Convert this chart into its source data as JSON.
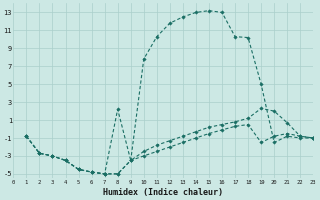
{
  "bg_color": "#cce8e4",
  "grid_color": "#aacfcb",
  "line_color": "#1a6e64",
  "series1_x": [
    1,
    2,
    3,
    4,
    5,
    6,
    7,
    8,
    9,
    10,
    11,
    12,
    13,
    14,
    15,
    16,
    17,
    18,
    19,
    20,
    21,
    22,
    23
  ],
  "series1_y": [
    -0.8,
    -2.7,
    -3.0,
    -3.5,
    -4.5,
    -4.8,
    -5.0,
    -5.0,
    -3.5,
    7.8,
    10.3,
    11.8,
    12.5,
    13.0,
    13.2,
    13.0,
    10.3,
    10.2,
    5.0,
    -1.5,
    -0.8,
    -1.0,
    -1.0
  ],
  "series2_x": [
    1,
    2,
    3,
    4,
    5,
    6,
    7,
    8,
    9,
    10,
    11,
    12,
    13,
    14,
    15,
    16,
    17,
    18,
    19,
    20,
    21,
    22,
    23
  ],
  "series2_y": [
    -0.8,
    -2.7,
    -3.0,
    -3.5,
    -4.5,
    -4.8,
    -5.0,
    2.2,
    -3.5,
    -2.5,
    -1.8,
    -1.3,
    -0.8,
    -0.3,
    0.2,
    0.5,
    0.8,
    1.2,
    2.3,
    2.0,
    0.7,
    -0.8,
    -1.0
  ],
  "series3_x": [
    1,
    2,
    3,
    4,
    5,
    6,
    7,
    8,
    9,
    10,
    11,
    12,
    13,
    14,
    15,
    16,
    17,
    18,
    19,
    20,
    21,
    22,
    23
  ],
  "series3_y": [
    -0.8,
    -2.7,
    -3.0,
    -3.5,
    -4.5,
    -4.8,
    -5.0,
    -5.0,
    -3.5,
    -3.0,
    -2.5,
    -2.0,
    -1.5,
    -1.0,
    -0.5,
    -0.1,
    0.3,
    0.5,
    -1.5,
    -0.8,
    -0.5,
    -0.8,
    -1.0
  ],
  "xlabel": "Humidex (Indice chaleur)",
  "xlim": [
    0,
    23
  ],
  "ylim": [
    -5.5,
    14.0
  ],
  "yticks": [
    -5,
    -3,
    -1,
    1,
    3,
    5,
    7,
    9,
    11,
    13
  ],
  "xticks": [
    0,
    1,
    2,
    3,
    4,
    5,
    6,
    7,
    8,
    9,
    10,
    11,
    12,
    13,
    14,
    15,
    16,
    17,
    18,
    19,
    20,
    21,
    22,
    23
  ]
}
